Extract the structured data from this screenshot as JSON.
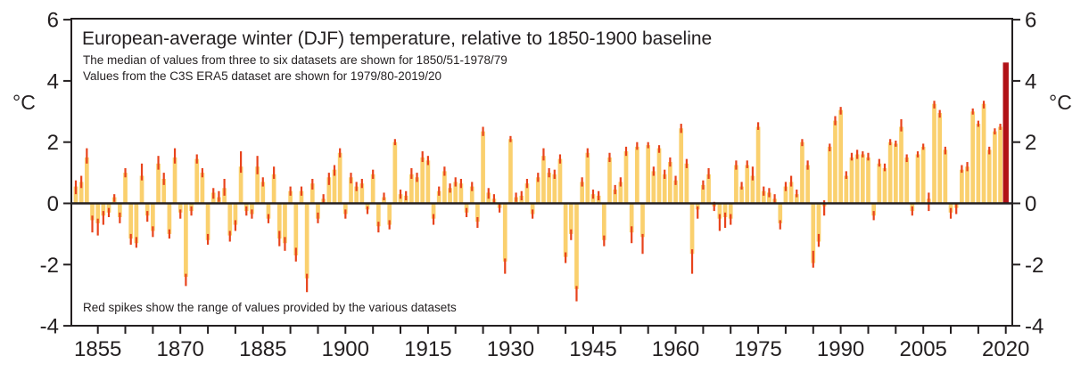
{
  "chart_data": {
    "type": "bar",
    "title": "European-average winter (DJF) temperature, relative to 1850-1900 baseline",
    "subtitle1": "The median of values from three to six datasets are shown for 1850/51-1978/79",
    "subtitle2": "Values from the C3S ERA5 dataset are shown for 1979/80-2019/20",
    "note": "Red spikes show the range of values provided by the various datasets",
    "ylabel": "°C",
    "ylim": [
      -4,
      6
    ],
    "y_ticks": [
      -4,
      -2,
      0,
      2,
      4,
      6
    ],
    "x_tick_step": 5,
    "x_tick_start": 1855,
    "x_tick_end": 2020,
    "x_tick_labels": [
      1855,
      1870,
      1885,
      1900,
      1915,
      1930,
      1945,
      1960,
      1975,
      1990,
      2005,
      2020
    ],
    "grid": false,
    "legend": "none",
    "highlight_year": 2020,
    "colors": {
      "bar": "#FAD06E",
      "spike": "#E8431C",
      "highlight_bar": "#B11117",
      "frame": "#231F20",
      "text": "#231F20",
      "background": "#FFFFFF"
    },
    "series_format": [
      "winter_end_year",
      "median_anomaly_C",
      "range_low_C",
      "range_high_C"
    ],
    "series": [
      [
        1851,
        0.55,
        0.3,
        0.75
      ],
      [
        1852,
        0.7,
        0.5,
        0.9
      ],
      [
        1853,
        1.5,
        1.3,
        1.8
      ],
      [
        1854,
        -0.55,
        -0.95,
        -0.4
      ],
      [
        1855,
        -0.65,
        -1.05,
        -0.5
      ],
      [
        1856,
        -0.4,
        -0.7,
        -0.25
      ],
      [
        1857,
        -0.3,
        -0.45,
        -0.15
      ],
      [
        1858,
        0.2,
        0.05,
        0.3
      ],
      [
        1859,
        -0.45,
        -0.65,
        -0.3
      ],
      [
        1860,
        1.0,
        0.85,
        1.15
      ],
      [
        1861,
        -1.15,
        -1.35,
        -1.0
      ],
      [
        1862,
        -1.3,
        -1.45,
        -1.1
      ],
      [
        1863,
        0.9,
        0.75,
        1.3
      ],
      [
        1864,
        -0.4,
        -0.6,
        -0.25
      ],
      [
        1865,
        -0.9,
        -1.1,
        -0.75
      ],
      [
        1866,
        1.3,
        1.1,
        1.55
      ],
      [
        1867,
        0.8,
        0.6,
        1.0
      ],
      [
        1868,
        -1.0,
        -1.15,
        -0.85
      ],
      [
        1869,
        1.5,
        1.3,
        1.8
      ],
      [
        1870,
        -0.3,
        -0.5,
        -0.2
      ],
      [
        1871,
        -2.4,
        -2.7,
        -2.3
      ],
      [
        1872,
        -0.25,
        -0.4,
        -0.1
      ],
      [
        1873,
        1.45,
        1.3,
        1.6
      ],
      [
        1874,
        1.0,
        0.85,
        1.15
      ],
      [
        1875,
        -1.2,
        -1.35,
        -1.0
      ],
      [
        1876,
        0.35,
        0.15,
        0.5
      ],
      [
        1877,
        0.2,
        0.05,
        0.4
      ],
      [
        1878,
        0.5,
        0.25,
        0.8
      ],
      [
        1879,
        -1.05,
        -1.25,
        -0.9
      ],
      [
        1880,
        -0.7,
        -0.9,
        -0.55
      ],
      [
        1881,
        1.2,
        1.0,
        1.7
      ],
      [
        1882,
        -0.25,
        -0.4,
        -0.1
      ],
      [
        1883,
        -0.35,
        -0.5,
        -0.2
      ],
      [
        1884,
        1.2,
        0.95,
        1.55
      ],
      [
        1885,
        0.7,
        0.55,
        0.85
      ],
      [
        1886,
        -0.5,
        -0.65,
        -0.35
      ],
      [
        1887,
        0.95,
        0.8,
        1.2
      ],
      [
        1888,
        -1.15,
        -1.4,
        -0.9
      ],
      [
        1889,
        -1.3,
        -1.55,
        -1.1
      ],
      [
        1890,
        0.4,
        0.25,
        0.55
      ],
      [
        1891,
        -1.7,
        -1.9,
        -1.45
      ],
      [
        1892,
        0.4,
        0.25,
        0.55
      ],
      [
        1893,
        -2.45,
        -2.9,
        -2.3
      ],
      [
        1894,
        0.65,
        0.45,
        0.8
      ],
      [
        1895,
        -0.5,
        -0.65,
        -0.3
      ],
      [
        1896,
        0.15,
        0.0,
        0.3
      ],
      [
        1897,
        0.85,
        0.6,
        1.0
      ],
      [
        1898,
        1.1,
        0.9,
        1.25
      ],
      [
        1899,
        1.65,
        1.5,
        1.8
      ],
      [
        1900,
        -0.35,
        -0.5,
        -0.2
      ],
      [
        1901,
        0.85,
        0.65,
        1.0
      ],
      [
        1902,
        0.55,
        0.4,
        0.7
      ],
      [
        1903,
        0.65,
        0.5,
        0.8
      ],
      [
        1904,
        -0.2,
        -0.35,
        -0.1
      ],
      [
        1905,
        0.95,
        0.8,
        1.1
      ],
      [
        1906,
        -0.75,
        -0.95,
        -0.6
      ],
      [
        1907,
        0.2,
        0.1,
        0.35
      ],
      [
        1908,
        -0.7,
        -0.85,
        -0.55
      ],
      [
        1909,
        2.0,
        1.9,
        2.1
      ],
      [
        1910,
        0.3,
        0.15,
        0.45
      ],
      [
        1911,
        0.25,
        0.1,
        0.4
      ],
      [
        1912,
        0.95,
        0.8,
        1.15
      ],
      [
        1913,
        0.85,
        0.7,
        1.0
      ],
      [
        1914,
        1.5,
        1.35,
        1.7
      ],
      [
        1915,
        1.4,
        1.25,
        1.55
      ],
      [
        1916,
        -0.5,
        -0.7,
        -0.35
      ],
      [
        1917,
        0.4,
        0.25,
        0.55
      ],
      [
        1918,
        1.05,
        0.9,
        1.2
      ],
      [
        1919,
        0.5,
        0.35,
        0.65
      ],
      [
        1920,
        0.7,
        0.55,
        0.85
      ],
      [
        1921,
        0.65,
        0.5,
        0.8
      ],
      [
        1922,
        -0.3,
        -0.45,
        -0.15
      ],
      [
        1923,
        0.55,
        0.4,
        0.7
      ],
      [
        1924,
        -0.6,
        -0.8,
        -0.45
      ],
      [
        1925,
        2.35,
        2.2,
        2.5
      ],
      [
        1926,
        0.35,
        0.15,
        0.5
      ],
      [
        1927,
        0.15,
        0.0,
        0.3
      ],
      [
        1928,
        -0.15,
        -0.3,
        0.0
      ],
      [
        1929,
        -1.9,
        -2.3,
        -1.8
      ],
      [
        1930,
        2.1,
        2.0,
        2.2
      ],
      [
        1931,
        0.2,
        0.05,
        0.35
      ],
      [
        1932,
        0.25,
        0.1,
        0.4
      ],
      [
        1933,
        0.65,
        0.5,
        0.8
      ],
      [
        1934,
        -0.35,
        -0.5,
        -0.2
      ],
      [
        1935,
        0.85,
        0.7,
        1.0
      ],
      [
        1936,
        1.55,
        1.4,
        1.8
      ],
      [
        1937,
        1.0,
        0.85,
        1.15
      ],
      [
        1938,
        0.95,
        0.8,
        1.1
      ],
      [
        1939,
        1.45,
        1.3,
        1.6
      ],
      [
        1940,
        -1.75,
        -1.95,
        -1.6
      ],
      [
        1941,
        -1.0,
        -1.2,
        -0.85
      ],
      [
        1942,
        -2.8,
        -3.2,
        -2.7
      ],
      [
        1943,
        0.7,
        0.55,
        0.85
      ],
      [
        1944,
        1.65,
        1.5,
        1.8
      ],
      [
        1945,
        0.3,
        0.15,
        0.45
      ],
      [
        1946,
        0.25,
        0.1,
        0.4
      ],
      [
        1947,
        -1.2,
        -1.4,
        -1.05
      ],
      [
        1948,
        1.5,
        1.35,
        1.65
      ],
      [
        1949,
        0.45,
        0.3,
        0.6
      ],
      [
        1950,
        0.7,
        0.55,
        0.85
      ],
      [
        1951,
        1.7,
        1.55,
        1.85
      ],
      [
        1952,
        -0.95,
        -1.3,
        -0.75
      ],
      [
        1953,
        1.85,
        1.75,
        2.0
      ],
      [
        1954,
        -1.1,
        -1.65,
        -1.0
      ],
      [
        1955,
        1.9,
        1.8,
        2.0
      ],
      [
        1956,
        1.05,
        0.9,
        1.2
      ],
      [
        1957,
        1.8,
        1.65,
        1.9
      ],
      [
        1958,
        0.95,
        0.8,
        1.1
      ],
      [
        1959,
        1.35,
        1.2,
        1.5
      ],
      [
        1960,
        0.75,
        0.6,
        0.9
      ],
      [
        1961,
        2.45,
        2.3,
        2.6
      ],
      [
        1962,
        1.3,
        1.15,
        1.45
      ],
      [
        1963,
        -1.65,
        -2.3,
        -1.5
      ],
      [
        1964,
        -0.2,
        -0.5,
        -0.1
      ],
      [
        1965,
        0.6,
        0.45,
        0.75
      ],
      [
        1966,
        0.95,
        0.8,
        1.15
      ],
      [
        1967,
        -0.1,
        -0.25,
        0.05
      ],
      [
        1968,
        -0.5,
        -0.9,
        -0.35
      ],
      [
        1969,
        -0.45,
        -0.8,
        -0.3
      ],
      [
        1970,
        -0.5,
        -0.7,
        -0.35
      ],
      [
        1971,
        1.25,
        1.1,
        1.4
      ],
      [
        1972,
        0.55,
        0.45,
        0.7
      ],
      [
        1973,
        1.25,
        1.15,
        1.4
      ],
      [
        1974,
        0.9,
        0.75,
        1.2
      ],
      [
        1975,
        2.5,
        2.4,
        2.65
      ],
      [
        1976,
        0.4,
        0.25,
        0.55
      ],
      [
        1977,
        0.35,
        0.2,
        0.5
      ],
      [
        1978,
        0.15,
        0.0,
        0.3
      ],
      [
        1979,
        -0.65,
        -0.85,
        -0.55
      ],
      [
        1980,
        0.55,
        0.4,
        0.7
      ],
      [
        1981,
        0.7,
        0.55,
        0.9
      ],
      [
        1982,
        0.3,
        0.2,
        0.45
      ],
      [
        1983,
        2.0,
        1.87,
        2.1
      ],
      [
        1984,
        1.25,
        1.1,
        1.4
      ],
      [
        1985,
        -1.95,
        -2.1,
        -1.55
      ],
      [
        1986,
        -1.25,
        -1.42,
        -1.0
      ],
      [
        1987,
        -0.1,
        -0.4,
        0.1
      ],
      [
        1988,
        1.85,
        1.7,
        1.95
      ],
      [
        1989,
        2.7,
        2.55,
        2.85
      ],
      [
        1990,
        3.05,
        2.9,
        3.15
      ],
      [
        1991,
        0.9,
        0.8,
        1.05
      ],
      [
        1992,
        1.5,
        1.4,
        1.65
      ],
      [
        1993,
        1.6,
        1.45,
        1.75
      ],
      [
        1994,
        1.6,
        1.5,
        1.7
      ],
      [
        1995,
        1.5,
        1.4,
        1.65
      ],
      [
        1996,
        -0.4,
        -0.55,
        -0.25
      ],
      [
        1997,
        1.3,
        1.2,
        1.45
      ],
      [
        1998,
        1.15,
        1.05,
        1.3
      ],
      [
        1999,
        2.0,
        1.9,
        2.1
      ],
      [
        2000,
        1.95,
        1.85,
        2.05
      ],
      [
        2001,
        2.5,
        2.35,
        2.75
      ],
      [
        2002,
        1.5,
        1.35,
        1.6
      ],
      [
        2003,
        -0.25,
        -0.4,
        -0.1
      ],
      [
        2004,
        1.6,
        1.5,
        1.7
      ],
      [
        2005,
        1.85,
        1.75,
        1.95
      ],
      [
        2006,
        0.15,
        -0.25,
        0.35
      ],
      [
        2007,
        3.25,
        3.1,
        3.35
      ],
      [
        2008,
        2.95,
        2.8,
        3.05
      ],
      [
        2009,
        1.75,
        1.6,
        1.85
      ],
      [
        2010,
        -0.3,
        -0.5,
        -0.15
      ],
      [
        2011,
        -0.15,
        -0.35,
        0.0
      ],
      [
        2012,
        1.1,
        1.0,
        1.25
      ],
      [
        2013,
        1.2,
        1.05,
        1.35
      ],
      [
        2014,
        3.0,
        2.9,
        3.1
      ],
      [
        2015,
        2.6,
        2.5,
        2.7
      ],
      [
        2016,
        3.25,
        3.1,
        3.35
      ],
      [
        2017,
        1.75,
        1.6,
        1.85
      ],
      [
        2018,
        2.35,
        2.25,
        2.45
      ],
      [
        2019,
        2.5,
        2.4,
        2.6
      ],
      [
        2020,
        4.6,
        4.6,
        4.6
      ]
    ]
  }
}
